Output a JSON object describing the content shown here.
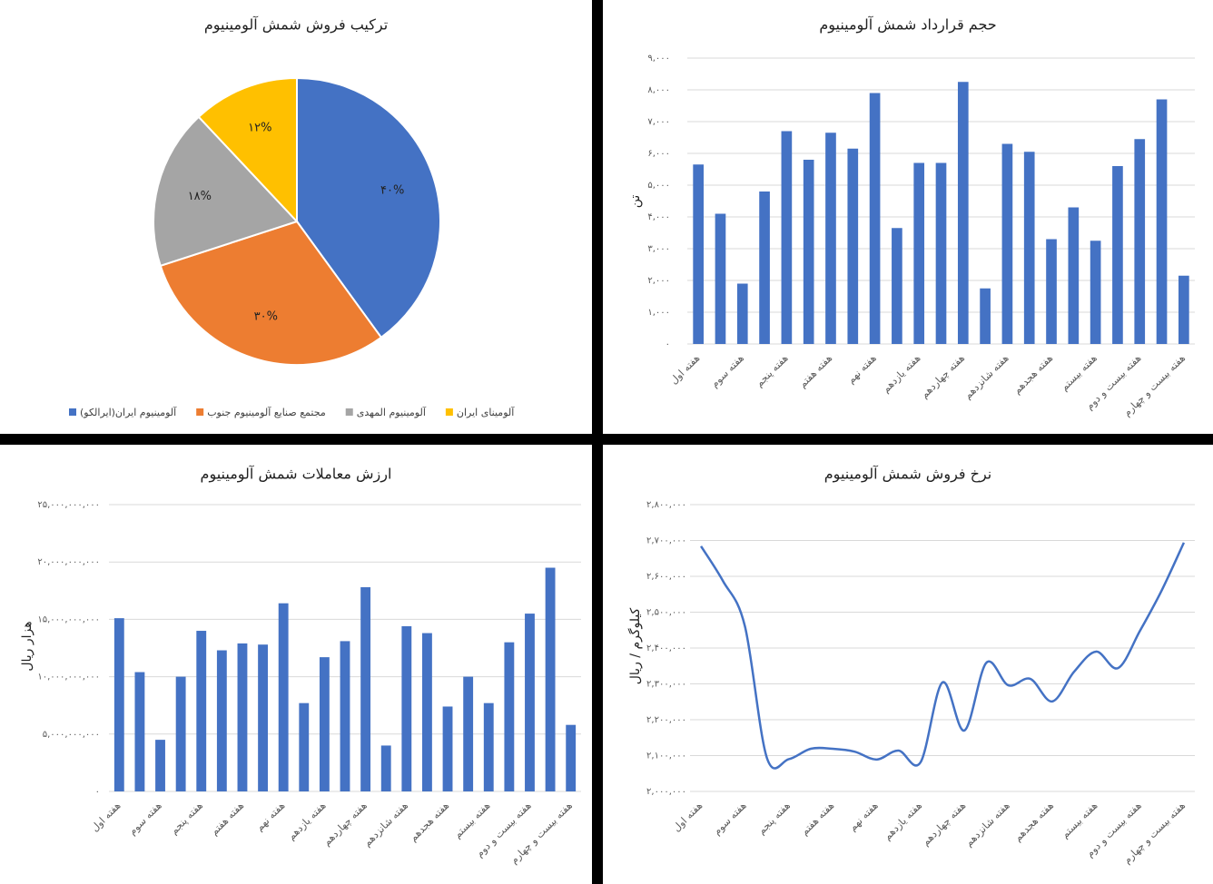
{
  "chart_data": [
    {
      "type": "pie",
      "title": "ترکیب فروش شمش آلومینیوم",
      "categories": [
        "آلومینیوم ایران(ایرالکو)",
        "مجتمع صنایع آلومینیوم جنوب",
        "آلومینیوم المهدی",
        "آلومینای ایران"
      ],
      "values": [
        40,
        30,
        18,
        12
      ],
      "value_labels": [
        "۴۰%",
        "۳۰%",
        "۱۸%",
        "۱۲%"
      ],
      "colors": [
        "#4472c4",
        "#ed7d31",
        "#a5a5a5",
        "#ffc000"
      ],
      "legend": "bottom"
    },
    {
      "type": "bar",
      "title": "حجم قرارداد شمش آلومینیوم",
      "ylabel": "تن",
      "categories": [
        "هفته اول",
        null,
        "هفته سوم",
        null,
        "هفته پنجم",
        null,
        "هفته هفتم",
        null,
        "هفته نهم",
        null,
        "هفته یازدهم",
        null,
        "هفته چهاردهم",
        null,
        "هفته شانزدهم",
        null,
        "هفته هجدهم",
        null,
        "هفته بیستم",
        null,
        "هفته بیست و دوم",
        null,
        "هفته بیست و چهارم"
      ],
      "values": [
        5650,
        4100,
        1900,
        4800,
        6700,
        5800,
        6650,
        6150,
        7900,
        3650,
        5700,
        5700,
        8250,
        1750,
        6300,
        6050,
        3300,
        4300,
        3250,
        5600,
        6450,
        7700,
        2150
      ],
      "color": "#4472c4",
      "ylim": [
        0,
        9000
      ],
      "yticks": [
        {
          "value": 0,
          "label": "۰"
        },
        {
          "value": 1000,
          "label": "۱,۰۰۰"
        },
        {
          "value": 2000,
          "label": "۲,۰۰۰"
        },
        {
          "value": 3000,
          "label": "۳,۰۰۰"
        },
        {
          "value": 4000,
          "label": "۴,۰۰۰"
        },
        {
          "value": 5000,
          "label": "۵,۰۰۰"
        },
        {
          "value": 6000,
          "label": "۶,۰۰۰"
        },
        {
          "value": 7000,
          "label": "۷,۰۰۰"
        },
        {
          "value": 8000,
          "label": "۸,۰۰۰"
        },
        {
          "value": 9000,
          "label": "۹,۰۰۰"
        }
      ],
      "grid": true
    },
    {
      "type": "bar",
      "title": "ارزش معاملات شمش آلومینیوم",
      "ylabel": "هزار ریال",
      "categories": [
        "هفته اول",
        null,
        "هفته سوم",
        null,
        "هفته پنجم",
        null,
        "هفته هفتم",
        null,
        "هفته نهم",
        null,
        "هفته یازدهم",
        null,
        "هفته چهاردهم",
        null,
        "هفته شانزدهم",
        null,
        "هفته هجدهم",
        null,
        "هفته بیستم",
        null,
        "هفته بیست و دوم",
        null,
        "هفته بیست و چهارم"
      ],
      "values": [
        15100000000,
        10400000000,
        4500000000,
        10000000000,
        14000000000,
        12300000000,
        12900000000,
        12800000000,
        16400000000,
        7700000000,
        11700000000,
        13100000000,
        17800000000,
        4000000000,
        14400000000,
        13800000000,
        7400000000,
        10000000000,
        7700000000,
        13000000000,
        15500000000,
        19500000000,
        5800000000
      ],
      "color": "#4472c4",
      "ylim": [
        0,
        25000000000
      ],
      "yticks": [
        {
          "value": 0,
          "label": "۰"
        },
        {
          "value": 5000000000,
          "label": "۵,۰۰۰,۰۰۰,۰۰۰"
        },
        {
          "value": 10000000000,
          "label": "۱۰,۰۰۰,۰۰۰,۰۰۰"
        },
        {
          "value": 15000000000,
          "label": "۱۵,۰۰۰,۰۰۰,۰۰۰"
        },
        {
          "value": 20000000000,
          "label": "۲۰,۰۰۰,۰۰۰,۰۰۰"
        },
        {
          "value": 25000000000,
          "label": "۲۵,۰۰۰,۰۰۰,۰۰۰"
        }
      ],
      "grid": true
    },
    {
      "type": "line",
      "title": "نرخ فروش شمش آلومینیوم",
      "ylabel": "کیلوگرم / ریال",
      "categories": [
        "هفته اول",
        null,
        "هفته سوم",
        null,
        "هفته پنجم",
        null,
        "هفته هفتم",
        null,
        "هفته نهم",
        null,
        "هفته یازدهم",
        null,
        "هفته چهاردهم",
        null,
        "هفته شانزدهم",
        null,
        "هفته هجدهم",
        null,
        "هفته بیستم",
        null,
        "هفته بیست و دوم",
        null,
        "هفته بیست و چهارم"
      ],
      "values": [
        2684000,
        2587000,
        2461000,
        2094000,
        2090000,
        2119000,
        2119000,
        2111000,
        2089000,
        2114000,
        2081000,
        2304000,
        2170000,
        2359000,
        2296000,
        2314000,
        2251000,
        2334000,
        2390000,
        2344000,
        2448000,
        2562000,
        2694000
      ],
      "color": "#4472c4",
      "ylim": [
        2000000,
        2800000
      ],
      "yticks": [
        {
          "value": 2000000,
          "label": "۲,۰۰۰,۰۰۰"
        },
        {
          "value": 2100000,
          "label": "۲,۱۰۰,۰۰۰"
        },
        {
          "value": 2200000,
          "label": "۲,۲۰۰,۰۰۰"
        },
        {
          "value": 2300000,
          "label": "۲,۳۰۰,۰۰۰"
        },
        {
          "value": 2400000,
          "label": "۲,۴۰۰,۰۰۰"
        },
        {
          "value": 2500000,
          "label": "۲,۵۰۰,۰۰۰"
        },
        {
          "value": 2600000,
          "label": "۲,۶۰۰,۰۰۰"
        },
        {
          "value": 2700000,
          "label": "۲,۷۰۰,۰۰۰"
        },
        {
          "value": 2800000,
          "label": "۲,۸۰۰,۰۰۰"
        }
      ],
      "grid": true
    }
  ]
}
